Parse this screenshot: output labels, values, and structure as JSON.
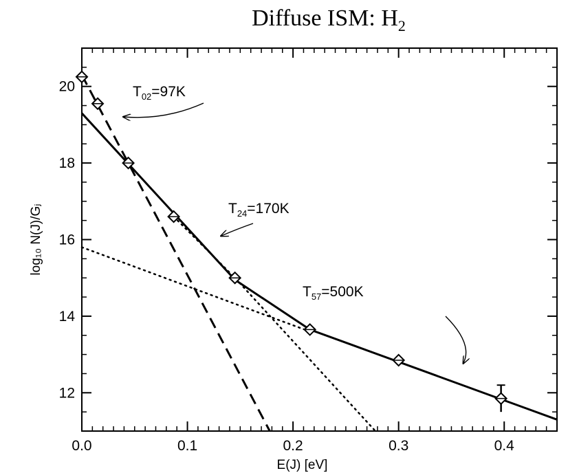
{
  "chart_data": {
    "type": "scatter",
    "title": "Diffuse ISM: H",
    "title_sub": "2",
    "xlabel": "E(J)  [eV]",
    "ylabel": "log₁₀ N(J)/Gⱼ",
    "xlim": [
      0.0,
      0.45
    ],
    "ylim": [
      11.0,
      21.0
    ],
    "xticks": [
      "0.0",
      "0.1",
      "0.2",
      "0.3",
      "0.4"
    ],
    "yticks": [
      "12",
      "14",
      "16",
      "18",
      "20"
    ],
    "grid": false,
    "series": [
      {
        "style": "markers",
        "x": [
          0.0,
          0.015,
          0.044,
          0.087,
          0.145,
          0.216,
          0.3,
          0.397
        ],
        "y": [
          20.25,
          19.55,
          18.0,
          16.6,
          15.0,
          13.65,
          12.85,
          11.85
        ],
        "yerr": [
          0.0,
          0.0,
          0.0,
          0.0,
          0.0,
          0.0,
          0.0,
          0.35
        ]
      },
      {
        "style": "solid",
        "x": [
          0.0,
          0.145,
          0.216,
          0.45
        ],
        "y": [
          19.3,
          14.95,
          13.65,
          11.3
        ]
      },
      {
        "style": "dashed",
        "x": [
          0.0,
          0.178
        ],
        "y": [
          20.3,
          11.0
        ]
      },
      {
        "style": "dotted",
        "x": [
          0.087,
          0.145,
          0.278
        ],
        "y": [
          16.6,
          15.0,
          11.0
        ]
      },
      {
        "style": "dotted",
        "x": [
          0.0,
          0.216
        ],
        "y": [
          15.8,
          13.6
        ]
      }
    ],
    "annotations": [
      {
        "label": "T",
        "sub": "02",
        "text": "=97K"
      },
      {
        "label": "T",
        "sub": "24",
        "text": "=170K"
      },
      {
        "label": "T",
        "sub": "57",
        "text": "=500K"
      }
    ]
  }
}
